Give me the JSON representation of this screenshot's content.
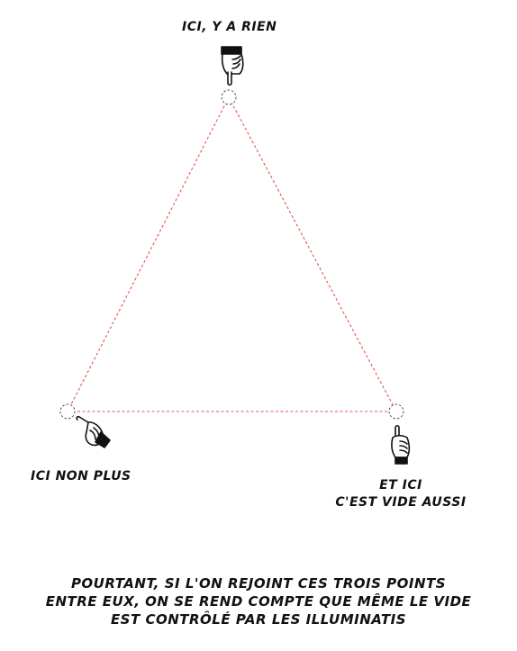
{
  "labels": {
    "top": "ICI, Y A RIEN",
    "left": "ICI NON PLUS",
    "right_line1": "ET ICI",
    "right_line2": "C'EST VIDE AUSSI"
  },
  "caption": {
    "line1": "POURTANT, SI L'ON REJOINT CES TROIS POINTS",
    "line2": "ENTRE EUX, ON SE REND COMPTE QUE MÊME LE VIDE",
    "line3": "EST CONTRÔLÉ PAR LES ILLUMINATIS"
  },
  "colors": {
    "triangle_line": "#e0564f",
    "point_outline": "#555555",
    "ink": "#111111"
  },
  "icons": {
    "top": "hand-pointing-down-icon",
    "left": "hand-pointing-up-left-icon",
    "right": "hand-pointing-up-icon"
  }
}
